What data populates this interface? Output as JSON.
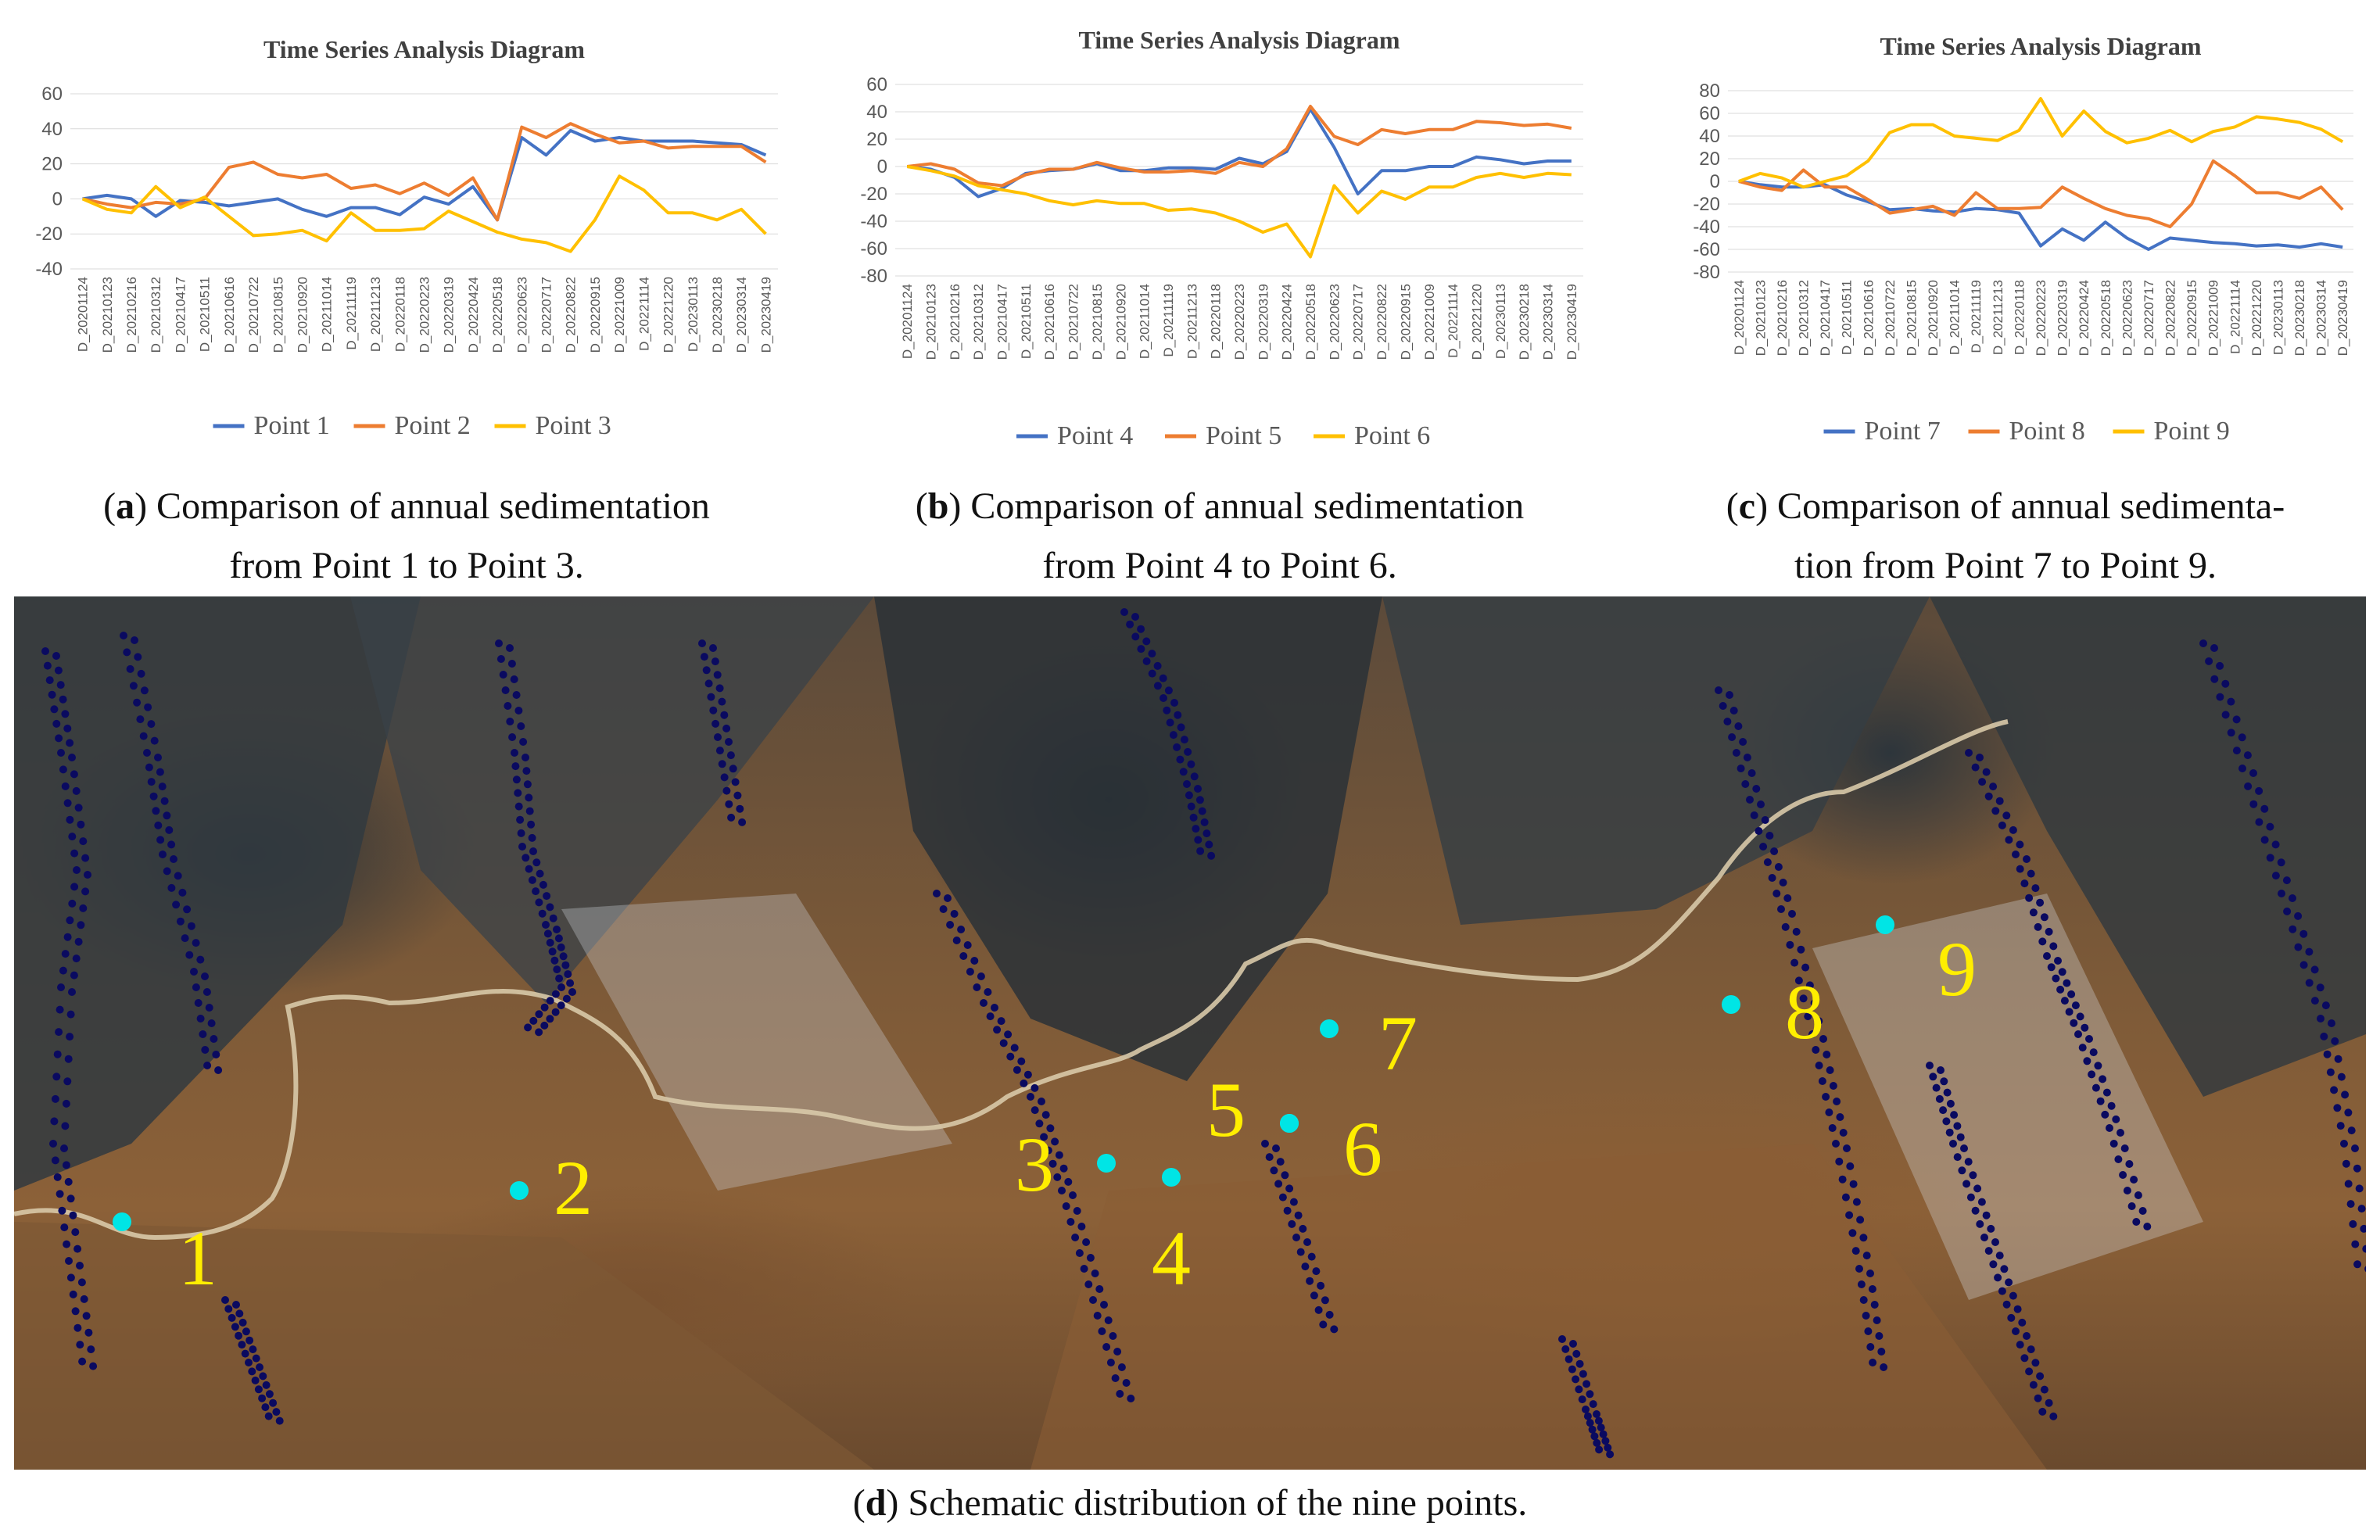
{
  "chart_data": [
    {
      "type": "line",
      "title": "Time Series Analysis Diagram",
      "ylim": [
        -40,
        60
      ],
      "yticks": [
        -40,
        -20,
        0,
        20,
        40,
        60
      ],
      "categories": [
        "D_20201124",
        "D_20210123",
        "D_20210216",
        "D_20210312",
        "D_20210417",
        "D_20210511",
        "D_20210616",
        "D_20210722",
        "D_20210815",
        "D_20210920",
        "D_20211014",
        "D_20211119",
        "D_20211213",
        "D_20220118",
        "D_20220223",
        "D_20220319",
        "D_20220424",
        "D_20220518",
        "D_20220623",
        "D_20220717",
        "D_20220822",
        "D_20220915",
        "D_20221009",
        "D_20221114",
        "D_20221220",
        "D_20230113",
        "D_20230218",
        "D_20230314",
        "D_20230419"
      ],
      "series": [
        {
          "name": "Point 1",
          "color": "#4472C4",
          "values": [
            0,
            2,
            0,
            -10,
            -1,
            -2,
            -4,
            -2,
            0,
            -6,
            -10,
            -5,
            -5,
            -9,
            1,
            -3,
            7,
            -12,
            35,
            25,
            39,
            33,
            35,
            33,
            33,
            33,
            32,
            31,
            25
          ]
        },
        {
          "name": "Point 2",
          "color": "#ED7D31",
          "values": [
            0,
            -3,
            -5,
            -2,
            -3,
            0,
            18,
            21,
            14,
            12,
            14,
            6,
            8,
            3,
            9,
            2,
            12,
            -12,
            41,
            35,
            43,
            37,
            32,
            33,
            29,
            30,
            30,
            30,
            21
          ]
        },
        {
          "name": "Point 3",
          "color": "#FFC000",
          "values": [
            0,
            -6,
            -8,
            7,
            -5,
            1,
            -10,
            -21,
            -20,
            -18,
            -24,
            -8,
            -18,
            -18,
            -17,
            -7,
            -13,
            -19,
            -23,
            -25,
            -30,
            -12,
            13,
            5,
            -8,
            -8,
            -12,
            -6,
            -20
          ]
        }
      ],
      "legend": "bottom"
    },
    {
      "type": "line",
      "title": "Time Series Analysis Diagram",
      "ylim": [
        -80,
        60
      ],
      "yticks": [
        -80,
        -60,
        -40,
        -20,
        0,
        20,
        40,
        60
      ],
      "categories": [
        "D_20201124",
        "D_20210123",
        "D_20210216",
        "D_20210312",
        "D_20210417",
        "D_20210511",
        "D_20210616",
        "D_20210722",
        "D_20210815",
        "D_20210920",
        "D_20211014",
        "D_20211119",
        "D_20211213",
        "D_20220118",
        "D_20220223",
        "D_20220319",
        "D_20220424",
        "D_20220518",
        "D_20220623",
        "D_20220717",
        "D_20220822",
        "D_20220915",
        "D_20221009",
        "D_20221114",
        "D_20221220",
        "D_20230113",
        "D_20230218",
        "D_20230314",
        "D_20230419"
      ],
      "series": [
        {
          "name": "Point 4",
          "color": "#4472C4",
          "values": [
            0,
            -2,
            -8,
            -22,
            -16,
            -5,
            -3,
            -2,
            2,
            -3,
            -3,
            -1,
            -1,
            -2,
            6,
            2,
            11,
            42,
            14,
            -20,
            -3,
            -3,
            0,
            0,
            7,
            5,
            2,
            4,
            4
          ]
        },
        {
          "name": "Point 5",
          "color": "#ED7D31",
          "values": [
            0,
            2,
            -2,
            -12,
            -14,
            -6,
            -2,
            -2,
            3,
            -1,
            -4,
            -4,
            -3,
            -5,
            3,
            0,
            13,
            44,
            22,
            16,
            27,
            24,
            27,
            27,
            33,
            32,
            30,
            31,
            28
          ]
        },
        {
          "name": "Point 6",
          "color": "#FFC000",
          "values": [
            0,
            -3,
            -7,
            -14,
            -17,
            -20,
            -25,
            -28,
            -25,
            -27,
            -27,
            -32,
            -31,
            -34,
            -40,
            -48,
            -42,
            -66,
            -14,
            -34,
            -18,
            -24,
            -15,
            -15,
            -8,
            -5,
            -8,
            -5,
            -6
          ]
        }
      ],
      "legend": "bottom"
    },
    {
      "type": "line",
      "title": "Time Series Analysis Diagram",
      "ylim": [
        -80,
        80
      ],
      "yticks": [
        -80,
        -60,
        -40,
        -20,
        0,
        20,
        40,
        60,
        80
      ],
      "categories": [
        "D_20201124",
        "D_20210123",
        "D_20210216",
        "D_20210312",
        "D_20210417",
        "D_20210511",
        "D_20210616",
        "D_20210722",
        "D_20210815",
        "D_20210920",
        "D_20211014",
        "D_20211119",
        "D_20211213",
        "D_20220118",
        "D_20220223",
        "D_20220319",
        "D_20220424",
        "D_20220518",
        "D_20220623",
        "D_20220717",
        "D_20220822",
        "D_20220915",
        "D_20221009",
        "D_20221114",
        "D_20221220",
        "D_20230113",
        "D_20230218",
        "D_20230314",
        "D_20230419"
      ],
      "series": [
        {
          "name": "Point 7",
          "color": "#4472C4",
          "values": [
            0,
            -3,
            -5,
            -5,
            -3,
            -12,
            -18,
            -25,
            -24,
            -26,
            -27,
            -24,
            -25,
            -28,
            -57,
            -42,
            -52,
            -36,
            -50,
            -60,
            -50,
            -52,
            -54,
            -55,
            -57,
            -56,
            -58,
            -55,
            -58
          ]
        },
        {
          "name": "Point 8",
          "color": "#ED7D31",
          "values": [
            0,
            -5,
            -8,
            10,
            -5,
            -5,
            -16,
            -28,
            -25,
            -22,
            -30,
            -10,
            -24,
            -24,
            -23,
            -5,
            -15,
            -24,
            -30,
            -33,
            -40,
            -20,
            18,
            5,
            -10,
            -10,
            -15,
            -5,
            -25
          ]
        },
        {
          "name": "Point 9",
          "color": "#FFC000",
          "values": [
            0,
            7,
            3,
            -5,
            0,
            5,
            18,
            43,
            50,
            50,
            40,
            38,
            36,
            45,
            73,
            40,
            62,
            44,
            34,
            38,
            45,
            35,
            44,
            48,
            57,
            55,
            52,
            46,
            35
          ]
        }
      ],
      "legend": "bottom"
    }
  ],
  "captions": {
    "a": {
      "letter": "a",
      "line1": ") Comparison of annual sedimentation",
      "line2": "from Point 1 to Point 3."
    },
    "b": {
      "letter": "b",
      "line1": ") Comparison of annual sedimentation",
      "line2": "from Point 4 to Point 6."
    },
    "c": {
      "letter": "c",
      "line1": ") Comparison of annual sedimenta-",
      "line2": "tion from Point 7 to Point 9."
    },
    "d": {
      "letter": "d",
      "line1": ") Schematic distribution of the nine points."
    }
  },
  "map": {
    "labels": [
      "1",
      "2",
      "3",
      "4",
      "5",
      "6",
      "7",
      "8",
      "9"
    ],
    "marker_color": "#00E5E5",
    "label_color": "#FFEE00",
    "scatter_color": "#0A0A60"
  }
}
